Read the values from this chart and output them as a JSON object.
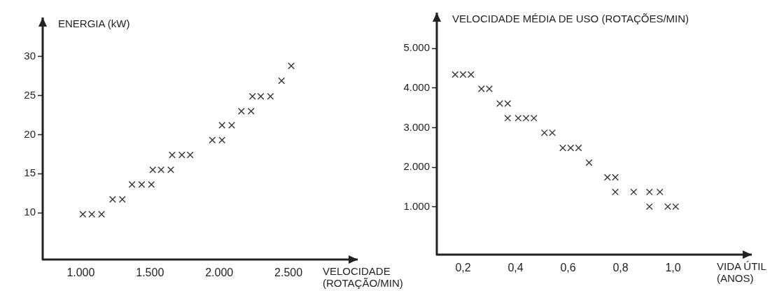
{
  "chart_data": [
    {
      "type": "scatter",
      "ylabel": "ENERGIA (kW)",
      "xlabel": "VELOCIDADE\n(ROTAÇÃO/MIN)",
      "marker": "cross",
      "xlim": [
        725,
        3000
      ],
      "ylim": [
        4,
        35
      ],
      "xticks": [
        {
          "value": 1000,
          "label": "1.000"
        },
        {
          "value": 1500,
          "label": "1.500"
        },
        {
          "value": 2000,
          "label": "2.000"
        },
        {
          "value": 2500,
          "label": "2.500"
        }
      ],
      "yticks": [
        10,
        15,
        20,
        25,
        30
      ],
      "series": [
        {
          "color": "#333333",
          "x": [
            1015,
            1080,
            1150,
            1230,
            1300,
            1370,
            1440,
            1510,
            1520,
            1580,
            1650,
            1660,
            1730,
            1790,
            1950,
            2020,
            2020,
            2090,
            2160,
            2230,
            2240,
            2300,
            2370,
            2450,
            2520
          ],
          "values": [
            9.8,
            9.8,
            9.8,
            11.7,
            11.7,
            13.6,
            13.6,
            13.6,
            15.5,
            15.5,
            15.5,
            17.4,
            17.4,
            17.4,
            19.3,
            19.3,
            21.2,
            21.2,
            23.0,
            23.0,
            24.9,
            24.9,
            24.9,
            26.9,
            28.8
          ]
        }
      ]
    },
    {
      "type": "scatter",
      "ylabel": "VELOCIDADE MÉDIA DE USO (ROTAÇÕES/MIN)",
      "xlabel": "VIDA ÚTIL\n(ANOS)",
      "marker": "cross",
      "xlim": [
        0.1,
        1.3
      ],
      "ylim": [
        -200,
        5900
      ],
      "xticks": [
        {
          "value": 0.2,
          "label": "0,2"
        },
        {
          "value": 0.4,
          "label": "0,4"
        },
        {
          "value": 0.6,
          "label": "0,6"
        },
        {
          "value": 0.8,
          "label": "0,8"
        },
        {
          "value": 1.0,
          "label": "1,0"
        }
      ],
      "yticks": [
        {
          "value": 1000,
          "label": "1.000"
        },
        {
          "value": 2000,
          "label": "2.000"
        },
        {
          "value": 3000,
          "label": "3.000"
        },
        {
          "value": 4000,
          "label": "4.000"
        },
        {
          "value": 5000,
          "label": "5.000"
        }
      ],
      "series": [
        {
          "color": "#333333",
          "x": [
            0.17,
            0.2,
            0.23,
            0.27,
            0.3,
            0.34,
            0.37,
            0.37,
            0.41,
            0.44,
            0.47,
            0.51,
            0.54,
            0.58,
            0.61,
            0.64,
            0.68,
            0.75,
            0.78,
            0.78,
            0.85,
            0.91,
            0.95,
            0.91,
            0.98,
            1.01
          ],
          "values": [
            4340,
            4340,
            4340,
            3980,
            3980,
            3610,
            3610,
            3240,
            3240,
            3240,
            3240,
            2870,
            2870,
            2490,
            2490,
            2490,
            2120,
            1750,
            1750,
            1380,
            1380,
            1380,
            1380,
            1010,
            1010,
            1010
          ]
        }
      ]
    }
  ]
}
